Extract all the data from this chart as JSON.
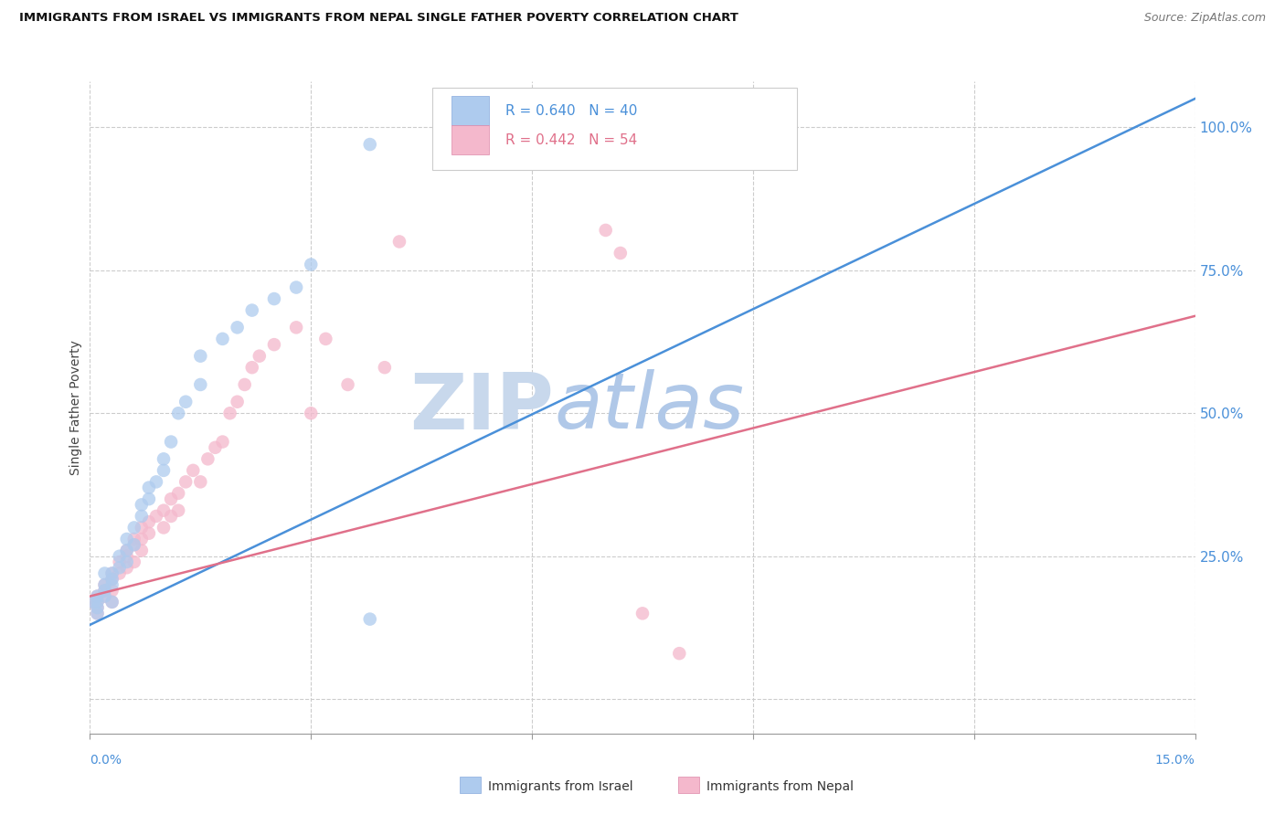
{
  "title": "IMMIGRANTS FROM ISRAEL VS IMMIGRANTS FROM NEPAL SINGLE FATHER POVERTY CORRELATION CHART",
  "source": "Source: ZipAtlas.com",
  "ylabel": "Single Father Poverty",
  "ylabel_right_labels": [
    "100.0%",
    "75.0%",
    "50.0%",
    "25.0%"
  ],
  "ylabel_right_values": [
    1.0,
    0.75,
    0.5,
    0.25
  ],
  "xmin": 0.0,
  "xmax": 0.15,
  "ymin": -0.06,
  "ymax": 1.08,
  "israel_R": 0.64,
  "israel_N": 40,
  "nepal_R": 0.442,
  "nepal_N": 54,
  "israel_color": "#aecbee",
  "nepal_color": "#f4b8cc",
  "israel_line_color": "#4a90d9",
  "nepal_line_color": "#e0708a",
  "legend_label_israel": "Immigrants from Israel",
  "legend_label_nepal": "Immigrants from Nepal",
  "watermark_zip": "ZIP",
  "watermark_atlas": "atlas",
  "background_color": "#ffffff",
  "grid_color": "#cccccc",
  "israel_line_x0": 0.0,
  "israel_line_y0": 0.13,
  "israel_line_x1": 0.15,
  "israel_line_y1": 1.05,
  "nepal_line_x0": 0.0,
  "nepal_line_y0": 0.18,
  "nepal_line_x1": 0.15,
  "nepal_line_y1": 0.67,
  "israel_x": [
    0.0005,
    0.001,
    0.001,
    0.001,
    0.001,
    0.002,
    0.002,
    0.002,
    0.002,
    0.003,
    0.003,
    0.003,
    0.003,
    0.004,
    0.004,
    0.005,
    0.005,
    0.005,
    0.006,
    0.006,
    0.007,
    0.007,
    0.008,
    0.008,
    0.009,
    0.01,
    0.01,
    0.011,
    0.012,
    0.013,
    0.015,
    0.015,
    0.018,
    0.02,
    0.022,
    0.025,
    0.028,
    0.03,
    0.038,
    0.038
  ],
  "israel_y": [
    0.17,
    0.17,
    0.18,
    0.16,
    0.15,
    0.18,
    0.19,
    0.2,
    0.22,
    0.17,
    0.2,
    0.21,
    0.22,
    0.23,
    0.25,
    0.24,
    0.26,
    0.28,
    0.27,
    0.3,
    0.32,
    0.34,
    0.35,
    0.37,
    0.38,
    0.4,
    0.42,
    0.45,
    0.5,
    0.52,
    0.55,
    0.6,
    0.63,
    0.65,
    0.68,
    0.7,
    0.72,
    0.76,
    0.97,
    0.14
  ],
  "nepal_x": [
    0.0005,
    0.001,
    0.001,
    0.001,
    0.001,
    0.002,
    0.002,
    0.002,
    0.003,
    0.003,
    0.003,
    0.003,
    0.004,
    0.004,
    0.005,
    0.005,
    0.005,
    0.006,
    0.006,
    0.006,
    0.007,
    0.007,
    0.007,
    0.008,
    0.008,
    0.009,
    0.01,
    0.01,
    0.011,
    0.011,
    0.012,
    0.012,
    0.013,
    0.014,
    0.015,
    0.016,
    0.017,
    0.018,
    0.019,
    0.02,
    0.021,
    0.022,
    0.023,
    0.025,
    0.028,
    0.03,
    0.032,
    0.035,
    0.04,
    0.042,
    0.07,
    0.072,
    0.075,
    0.08
  ],
  "nepal_y": [
    0.17,
    0.16,
    0.17,
    0.18,
    0.15,
    0.18,
    0.19,
    0.2,
    0.17,
    0.19,
    0.21,
    0.22,
    0.22,
    0.24,
    0.23,
    0.25,
    0.26,
    0.24,
    0.27,
    0.28,
    0.26,
    0.28,
    0.3,
    0.29,
    0.31,
    0.32,
    0.3,
    0.33,
    0.32,
    0.35,
    0.33,
    0.36,
    0.38,
    0.4,
    0.38,
    0.42,
    0.44,
    0.45,
    0.5,
    0.52,
    0.55,
    0.58,
    0.6,
    0.62,
    0.65,
    0.5,
    0.63,
    0.55,
    0.58,
    0.8,
    0.82,
    0.78,
    0.15,
    0.08
  ]
}
